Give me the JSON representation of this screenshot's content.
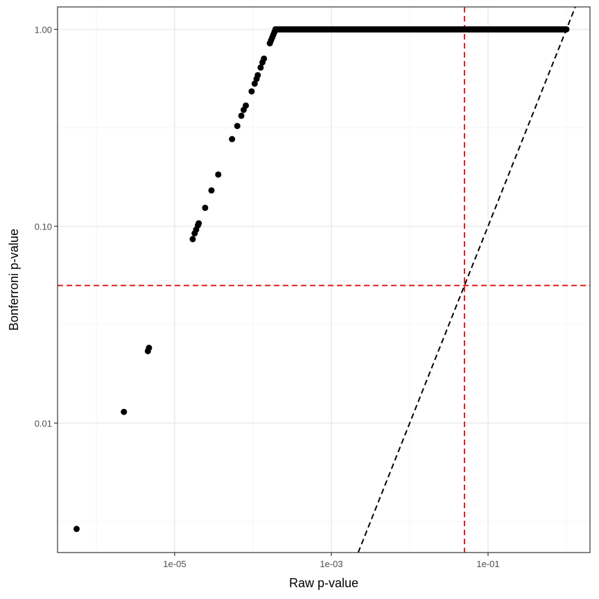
{
  "chart_data": {
    "type": "scatter",
    "title": "",
    "xlabel": "Raw p-value",
    "ylabel": "Bonferroni p-value",
    "x_scale": "log10",
    "y_scale": "log10",
    "xlim": [
      3.2e-07,
      2.0
    ],
    "ylim": [
      0.0022,
      1.3
    ],
    "x_ticks": [
      {
        "value": 1e-05,
        "label": "1e-05"
      },
      {
        "value": 0.001,
        "label": "1e-03"
      },
      {
        "value": 0.1,
        "label": "1e-01"
      }
    ],
    "y_ticks": [
      {
        "value": 0.01,
        "label": "0.01"
      },
      {
        "value": 0.1,
        "label": "0.10"
      },
      {
        "value": 1.0,
        "label": "1.00"
      }
    ],
    "grid": true,
    "reference_lines": {
      "vertical_red_dashed_x": 0.05,
      "horizontal_red_dashed_y": 0.05,
      "identity_black_dashed": true
    },
    "colors": {
      "points": "#000000",
      "threshold_lines": "#e41a1c",
      "identity_line": "#000000",
      "grid_major": "#ebebeb",
      "grid_minor": "#f5f5f5",
      "panel_border": "#333333"
    },
    "points": [
      {
        "x": 5.6e-07,
        "y": 0.0029
      },
      {
        "x": 2.25e-06,
        "y": 0.0114
      },
      {
        "x": 4.55e-06,
        "y": 0.0232
      },
      {
        "x": 4.7e-06,
        "y": 0.0241
      },
      {
        "x": 1.7e-05,
        "y": 0.086
      },
      {
        "x": 1.8e-05,
        "y": 0.092
      },
      {
        "x": 1.88e-05,
        "y": 0.096
      },
      {
        "x": 1.98e-05,
        "y": 0.101
      },
      {
        "x": 2.03e-05,
        "y": 0.1035
      },
      {
        "x": 2.45e-05,
        "y": 0.124
      },
      {
        "x": 2.95e-05,
        "y": 0.152
      },
      {
        "x": 3.6e-05,
        "y": 0.183
      },
      {
        "x": 5.4e-05,
        "y": 0.277
      },
      {
        "x": 6.3e-05,
        "y": 0.323
      },
      {
        "x": 7.1e-05,
        "y": 0.364
      },
      {
        "x": 7.6e-05,
        "y": 0.39
      },
      {
        "x": 8.1e-05,
        "y": 0.41
      },
      {
        "x": 9.6e-05,
        "y": 0.484
      },
      {
        "x": 0.000105,
        "y": 0.53
      },
      {
        "x": 0.000111,
        "y": 0.56
      },
      {
        "x": 0.000115,
        "y": 0.585
      },
      {
        "x": 0.000125,
        "y": 0.64
      },
      {
        "x": 0.000132,
        "y": 0.68
      },
      {
        "x": 0.000138,
        "y": 0.71
      },
      {
        "x": 0.000164,
        "y": 0.85
      },
      {
        "x": 0.00017,
        "y": 0.88
      },
      {
        "x": 0.000176,
        "y": 0.91
      },
      {
        "x": 0.000182,
        "y": 0.94
      },
      {
        "x": 0.000188,
        "y": 0.97
      },
      {
        "x": 0.000194,
        "y": 1.0
      }
    ],
    "plateau": {
      "x_from": 0.000194,
      "x_to": 1.0,
      "y": 1.0,
      "n_points": 240
    }
  }
}
